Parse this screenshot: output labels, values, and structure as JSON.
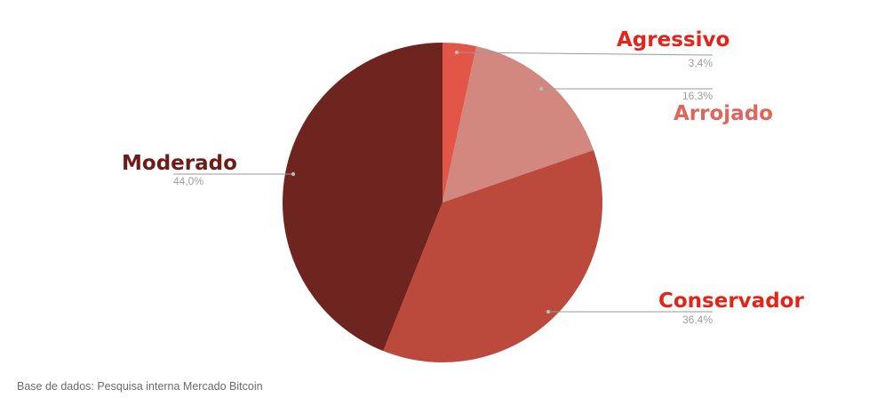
{
  "chart_data": {
    "type": "pie",
    "start_angle_deg": 0,
    "direction": "clockwise",
    "slices": [
      {
        "label": "Agressivo",
        "value": 3.4,
        "value_label": "3,4%",
        "color": "#e15646",
        "label_color": "#e3241b"
      },
      {
        "label": "Arrojado",
        "value": 16.3,
        "value_label": "16,3%",
        "color": "#d2877f",
        "label_color": "#e0655c"
      },
      {
        "label": "Conservador",
        "value": 36.4,
        "value_label": "36,4%",
        "color": "#bb4a3d",
        "label_color": "#e3241b"
      },
      {
        "label": "Moderado",
        "value": 44.0,
        "value_label": "44,0%",
        "color": "#6e2520",
        "label_color": "#6e1c18"
      }
    ],
    "legend": "none"
  },
  "footer": {
    "source": "Base de dados: Pesquisa interna Mercado Bitcoin"
  }
}
